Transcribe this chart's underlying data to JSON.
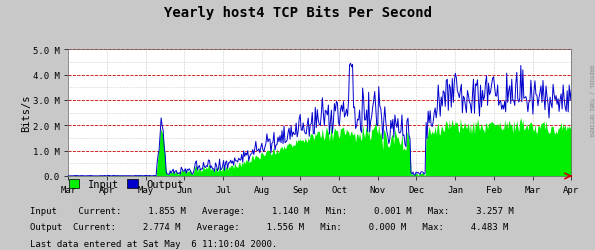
{
  "title": "Yearly host4 TCP Bits Per Second",
  "ylabel": "Bits/s",
  "bg_color": "#c8c8c8",
  "plot_bg_color": "#ffffff",
  "grid_color_h_solid": "#cc0000",
  "grid_color_h_dot": "#cc0000",
  "grid_color_v": "#a0a0a0",
  "input_color": "#00ee00",
  "output_color": "#0000cc",
  "ylim": [
    0,
    5000000
  ],
  "yticks": [
    0,
    1000000,
    2000000,
    3000000,
    4000000,
    5000000
  ],
  "ytick_labels": [
    "0.0",
    "1.0 M",
    "2.0 M",
    "3.0 M",
    "4.0 M",
    "5.0 M"
  ],
  "xtick_labels": [
    "Mar",
    "Apr",
    "May",
    "Jun",
    "Jul",
    "Aug",
    "Sep",
    "Oct",
    "Nov",
    "Dec",
    "Jan",
    "Feb",
    "Mar",
    "Apr"
  ],
  "right_label": "RRDTOOL / TOBI OETIKER",
  "n_points": 500,
  "arrow_color": "#cc0000"
}
